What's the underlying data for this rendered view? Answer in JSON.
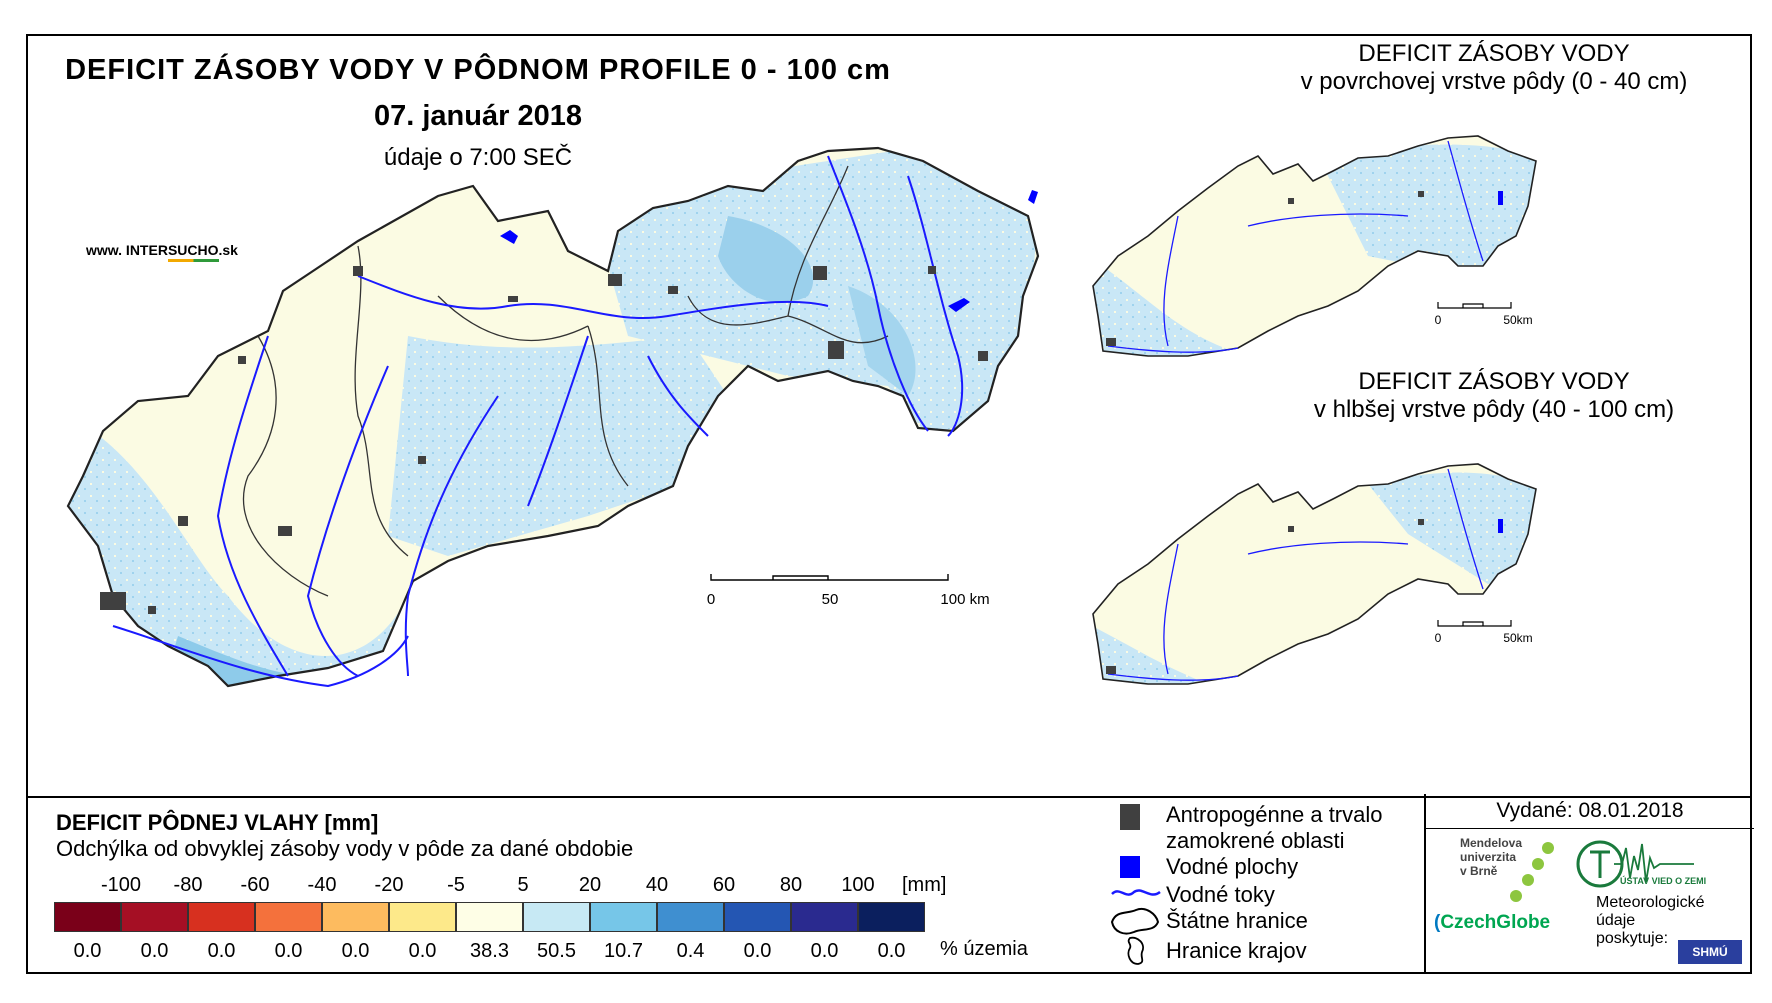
{
  "main_title": "DEFICIT ZÁSOBY VODY V PÔDNOM PROFILE 0 - 100 cm",
  "date": "07. január 2018",
  "time_note": "údaje o 7:00 SEČ",
  "website": {
    "prefix": "www. INTER",
    "highlight": "SUCHO",
    "suffix": ".sk"
  },
  "inset_top": {
    "line1": "DEFICIT ZÁSOBY VODY",
    "line2": "v povrchovej vrstve pôdy (0 - 40 cm)"
  },
  "inset_bottom": {
    "line1": "DEFICIT ZÁSOBY VODY",
    "line2": "v hlbšej vrstve pôdy (40 - 100 cm)"
  },
  "scale_main": {
    "labels": [
      "0",
      "50",
      "100 km"
    ]
  },
  "scale_inset": {
    "labels": [
      "0",
      "50km"
    ]
  },
  "legend": {
    "title": "DEFICIT PÔDNEJ VLAHY [mm]",
    "subtitle": "Odchýlka od obvyklej zásoby vody v pôde za dané obdobie",
    "ticks": [
      "-100",
      "-80",
      "-60",
      "-40",
      "-20",
      "-5",
      "5",
      "20",
      "40",
      "60",
      "80",
      "100"
    ],
    "unit": "[mm]",
    "classes": [
      {
        "color": "#7a0019",
        "percent": "0.0"
      },
      {
        "color": "#a50f24",
        "percent": "0.0"
      },
      {
        "color": "#d7301f",
        "percent": "0.0"
      },
      {
        "color": "#f4713c",
        "percent": "0.0"
      },
      {
        "color": "#fdbb5f",
        "percent": "0.0"
      },
      {
        "color": "#fde98a",
        "percent": "0.0"
      },
      {
        "color": "#fefee6",
        "percent": "38.3"
      },
      {
        "color": "#c7e9f4",
        "percent": "50.5"
      },
      {
        "color": "#76c6e8",
        "percent": "10.7"
      },
      {
        "color": "#3f8fd0",
        "percent": "0.4"
      },
      {
        "color": "#2456b3",
        "percent": "0.0"
      },
      {
        "color": "#2a2a8f",
        "percent": "0.0"
      },
      {
        "color": "#0b1f5e",
        "percent": "0.0"
      }
    ],
    "percent_unit": "% územia"
  },
  "symbols": {
    "urban": "Antropogénne a trvalo zamokrené oblasti",
    "water_bodies": "Vodné plochy",
    "rivers": "Vodné toky",
    "state_border": "Štátne hranice",
    "region_border": "Hranice krajov"
  },
  "issued": "Vydané: 08.01.2018",
  "logos": {
    "mendel": [
      "Mendelova",
      "univerzita",
      "v Brně"
    ],
    "czechglobe": "CzechGlobe",
    "ustav": "ÚSTAV VIED O ZEMI",
    "meteo": [
      "Meteorologické",
      "údaje",
      "poskytuje:"
    ],
    "shmu": "SHMÚ"
  },
  "colors": {
    "urban": "#404040",
    "water": "#0000ff",
    "river": "#1a1aff",
    "land_light": "#fbfbe3",
    "land_blue": "#c6e6f6"
  }
}
